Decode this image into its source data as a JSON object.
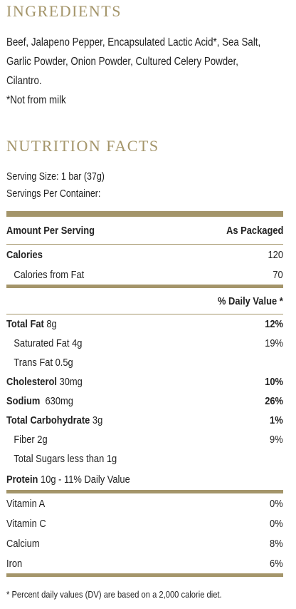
{
  "ingredients": {
    "heading": "INGREDIENTS",
    "lines": [
      "Beef, Jalapeno Pepper, Encapsulated Lactic Acid*, Sea Salt,",
      "Garlic Powder, Onion Powder, Cultured Celery Powder,",
      "Cilantro.",
      "*Not from milk"
    ]
  },
  "nutrition": {
    "heading": "NUTRITION FACTS",
    "serving_size": "Serving Size: 1 bar (37g)",
    "servings_per_container": "Servings Per Container:",
    "header_left": "Amount Per Serving",
    "header_right": "As Packaged",
    "calories_label": "Calories",
    "calories_value": "120",
    "calories_fat_label": "Calories from Fat",
    "calories_fat_value": "70",
    "daily_value_header": "% Daily Value *",
    "total_fat": {
      "label": "Total Fat",
      "amount": " 8g",
      "dv": "12%"
    },
    "saturated_fat": {
      "label": "Saturated Fat 4g",
      "dv": "19%"
    },
    "trans_fat": {
      "label": "Trans Fat 0.5g"
    },
    "cholesterol": {
      "label": "Cholesterol",
      "amount": " 30mg",
      "dv": "10%"
    },
    "sodium": {
      "label": "Sodium",
      "amount": "  630mg",
      "dv": "26%"
    },
    "total_carb": {
      "label": "Total Carbohydrate",
      "amount": " 3g",
      "dv": "1%"
    },
    "fiber": {
      "label": "Fiber 2g",
      "dv": "9%"
    },
    "sugars": {
      "label": "Total Sugars less than 1g"
    },
    "protein": {
      "label": "Protein",
      "amount": " 10g - 11% Daily Value"
    },
    "vitamins": [
      {
        "label": "Vitamin A",
        "dv": "0%"
      },
      {
        "label": "Vitamin C",
        "dv": "0%"
      },
      {
        "label": "Calcium",
        "dv": "8%"
      },
      {
        "label": "Iron",
        "dv": "6%"
      }
    ],
    "footnote": "* Percent daily values (DV) are based on a 2,000 calorie diet."
  },
  "colors": {
    "accent": "#a4956a",
    "text": "#222222"
  }
}
